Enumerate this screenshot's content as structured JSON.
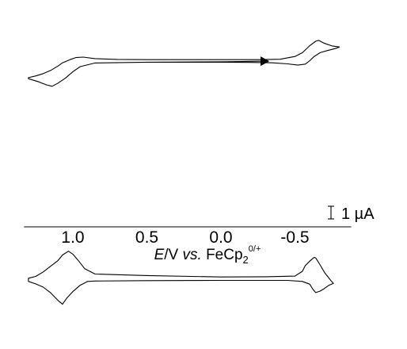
{
  "chart_data": {
    "type": "line",
    "xlabel": {
      "parts": [
        {
          "text": "E",
          "style": "italic"
        },
        {
          "text": "/V ",
          "style": "normal"
        },
        {
          "text": "vs.",
          "style": "italic"
        },
        {
          "text": " FeCp",
          "style": "normal"
        },
        {
          "text": "2",
          "style": "sub"
        },
        {
          "text": "0/+",
          "style": "sup"
        }
      ]
    },
    "x_ticks": [
      {
        "value": 1.0,
        "label": "1.0"
      },
      {
        "value": 0.5,
        "label": "0.5"
      },
      {
        "value": 0.0,
        "label": "0.0"
      },
      {
        "value": -0.5,
        "label": "-0.5"
      }
    ],
    "xlim": [
      1.33,
      -0.88
    ],
    "x_reversed": true,
    "grid": false,
    "scale_bar": {
      "label": "1 µA",
      "value_uA": 1.0
    },
    "start_marker": {
      "x": -0.3,
      "shape": "triangle",
      "direction": "right"
    },
    "series": [
      {
        "key": "top",
        "points": [
          [
            -0.3,
            0.18
          ],
          [
            0.0,
            0.13
          ],
          [
            0.5,
            0.1
          ],
          [
            0.85,
            0.04
          ],
          [
            0.95,
            -0.25
          ],
          [
            1.0,
            -0.65
          ],
          [
            1.05,
            -1.15
          ],
          [
            1.1,
            -1.55
          ],
          [
            1.14,
            -1.8
          ],
          [
            1.18,
            -1.68
          ],
          [
            1.23,
            -1.45
          ],
          [
            1.3,
            -1.2
          ],
          [
            1.3,
            -1.12
          ],
          [
            1.25,
            -0.98
          ],
          [
            1.2,
            -0.8
          ],
          [
            1.15,
            -0.55
          ],
          [
            1.1,
            -0.2
          ],
          [
            1.07,
            0.05
          ],
          [
            1.02,
            0.3
          ],
          [
            0.98,
            0.46
          ],
          [
            0.93,
            0.5
          ],
          [
            0.85,
            0.38
          ],
          [
            0.7,
            0.32
          ],
          [
            0.5,
            0.3
          ],
          [
            0.0,
            0.3
          ],
          [
            -0.25,
            0.3
          ],
          [
            -0.4,
            0.33
          ],
          [
            -0.5,
            0.55
          ],
          [
            -0.55,
            0.85
          ],
          [
            -0.6,
            1.4
          ],
          [
            -0.64,
            1.75
          ],
          [
            -0.66,
            1.82
          ],
          [
            -0.7,
            1.58
          ],
          [
            -0.75,
            1.38
          ],
          [
            -0.8,
            1.3
          ],
          [
            -0.78,
            1.2
          ],
          [
            -0.72,
            1.02
          ],
          [
            -0.67,
            0.85
          ],
          [
            -0.63,
            0.55
          ],
          [
            -0.6,
            0.22
          ],
          [
            -0.57,
            -0.05
          ],
          [
            -0.52,
            -0.13
          ],
          [
            -0.45,
            -0.03
          ],
          [
            -0.35,
            0.05
          ],
          [
            -0.2,
            0.08
          ],
          [
            0.0,
            0.1
          ],
          [
            0.5,
            0.1
          ],
          [
            0.85,
            0.04
          ]
        ]
      },
      {
        "key": "bottom",
        "points": [
          [
            0.0,
            0.05
          ],
          [
            0.5,
            0.16
          ],
          [
            0.85,
            0.28
          ],
          [
            0.92,
            0.7
          ],
          [
            0.96,
            1.3
          ],
          [
            1.0,
            1.85
          ],
          [
            1.03,
            2.08
          ],
          [
            1.07,
            1.78
          ],
          [
            1.1,
            1.35
          ],
          [
            1.15,
            0.9
          ],
          [
            1.2,
            0.45
          ],
          [
            1.25,
            0.1
          ],
          [
            1.3,
            -0.05
          ],
          [
            1.3,
            -0.3
          ],
          [
            1.25,
            -0.5
          ],
          [
            1.2,
            -0.75
          ],
          [
            1.15,
            -1.2
          ],
          [
            1.1,
            -1.8
          ],
          [
            1.07,
            -2.1
          ],
          [
            1.04,
            -1.6
          ],
          [
            1.0,
            -1.1
          ],
          [
            0.95,
            -0.6
          ],
          [
            0.9,
            -0.3
          ],
          [
            0.85,
            -0.27
          ],
          [
            0.5,
            -0.24
          ],
          [
            0.0,
            -0.22
          ],
          [
            -0.45,
            -0.22
          ],
          [
            -0.55,
            -0.3
          ],
          [
            -0.6,
            -0.52
          ],
          [
            -0.62,
            -0.9
          ],
          [
            -0.64,
            -1.18
          ],
          [
            -0.67,
            -1.06
          ],
          [
            -0.7,
            -0.85
          ],
          [
            -0.73,
            -0.6
          ],
          [
            -0.76,
            -0.45
          ],
          [
            -0.74,
            -0.2
          ],
          [
            -0.7,
            0.4
          ],
          [
            -0.67,
            1.0
          ],
          [
            -0.64,
            1.55
          ],
          [
            -0.63,
            1.6
          ],
          [
            -0.6,
            1.3
          ],
          [
            -0.57,
            0.95
          ],
          [
            -0.55,
            0.5
          ],
          [
            -0.5,
            0.12
          ],
          [
            -0.3,
            0.07
          ],
          [
            0.0,
            0.05
          ]
        ]
      }
    ]
  }
}
